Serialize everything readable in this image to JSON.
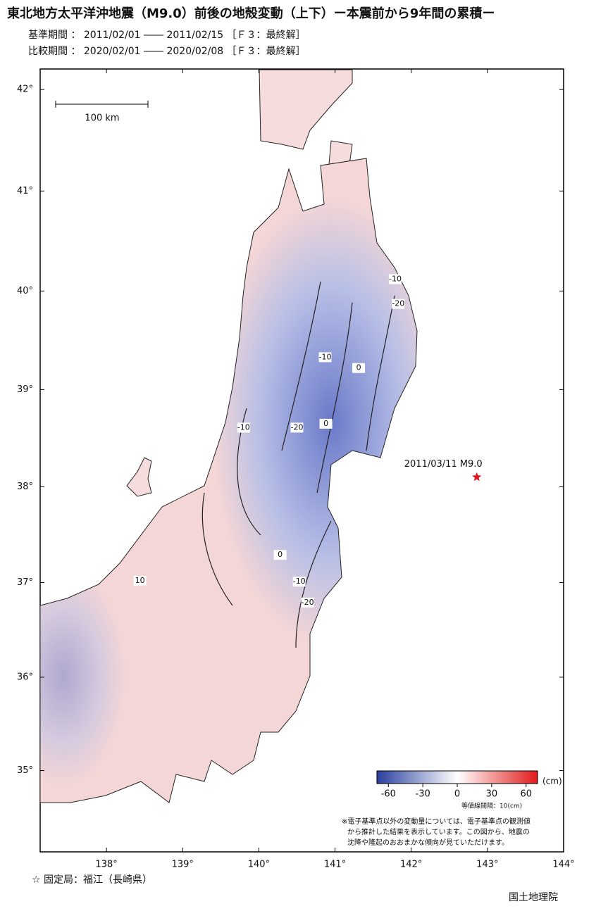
{
  "title": "東北地方太平洋沖地震（M9.0）前後の地殻変動（上下）ー本震前から9年間の累積ー",
  "periods": [
    "基準期間 ： 2011/02/01 ―― 2011/02/15 ［Ｆ３：最終解］",
    "比較期間 ： 2020/02/01 ―― 2020/02/08 ［Ｆ３：最終解］"
  ],
  "map": {
    "xlim": [
      137.13,
      144
    ],
    "ylim": [
      34.12,
      42.2
    ],
    "xticks": [
      {
        "value": 138,
        "label": "138°"
      },
      {
        "value": 139,
        "label": "139°"
      },
      {
        "value": 140,
        "label": "140°"
      },
      {
        "value": 141,
        "label": "141°"
      },
      {
        "value": 142,
        "label": "142°"
      },
      {
        "value": 143,
        "label": "143°"
      },
      {
        "value": 144,
        "label": "144°"
      }
    ],
    "yticks": [
      {
        "value": 35,
        "label": "35°"
      },
      {
        "value": 36,
        "label": "36°"
      },
      {
        "value": 37,
        "label": "37°"
      },
      {
        "value": 38,
        "label": "38°"
      },
      {
        "value": 39,
        "label": "39°"
      },
      {
        "value": 40,
        "label": "40°"
      },
      {
        "value": 41,
        "label": "41°"
      },
      {
        "value": 42,
        "label": "42°"
      }
    ]
  },
  "scale_label": "100 km",
  "epicenter": {
    "label": "2011/03/11 M9.0",
    "lon": 142.86,
    "lat": 38.1
  },
  "contour_labels": [
    {
      "value": -10,
      "lon": 141.79,
      "lat": 40.12
    },
    {
      "value": -20,
      "lon": 141.83,
      "lat": 39.87
    },
    {
      "value": -10,
      "lon": 140.87,
      "lat": 39.33
    },
    {
      "value": 0,
      "lon": 141.31,
      "lat": 39.22
    },
    {
      "value": -10,
      "lon": 139.8,
      "lat": 38.61
    },
    {
      "value": -20,
      "lon": 140.5,
      "lat": 38.61
    },
    {
      "value": 0,
      "lon": 140.88,
      "lat": 38.65
    },
    {
      "value": 0,
      "lon": 140.28,
      "lat": 37.29
    },
    {
      "value": -10,
      "lon": 140.53,
      "lat": 37.01
    },
    {
      "value": -20,
      "lon": 140.64,
      "lat": 36.79
    },
    {
      "value": 10,
      "lon": 138.44,
      "lat": 37.02
    }
  ],
  "colorbar": {
    "lim": [
      -70,
      70
    ],
    "ticks": [
      -60,
      -30,
      0,
      30,
      60
    ],
    "unit": "(cm)",
    "interval_note": "等値線間隔：10(cm)"
  },
  "note": [
    "※電子基準点以外の変動量については、電子基準点の観測値",
    "から推計した結果を表示しています。この図から、地震の",
    "沈降や隆起のおおまかな傾向が見ていただけます。"
  ],
  "fixed_station": "☆ 固定局：福江（長崎県）",
  "agency": "国土地理院"
}
